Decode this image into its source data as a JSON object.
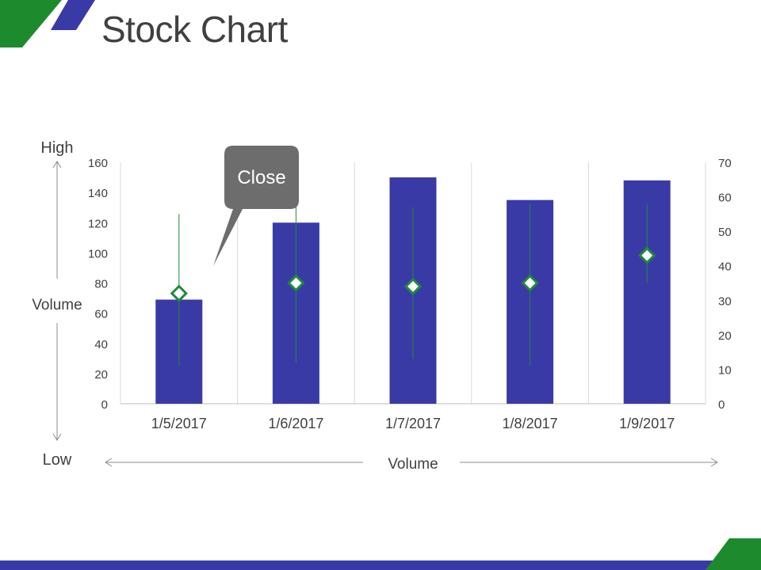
{
  "slide": {
    "title": "Stock Chart",
    "labels": {
      "high": "High",
      "low": "Low",
      "volume_left": "Volume",
      "volume_bottom": "Volume"
    },
    "callout": "Close"
  },
  "colors": {
    "bar": "#3a3aa6",
    "marker": "#1e8a3a",
    "accent_green": "#1e8a2e",
    "accent_blue": "#3a3aa6"
  },
  "chart_data": {
    "type": "bar",
    "categories": [
      "1/5/2017",
      "1/6/2017",
      "1/7/2017",
      "1/8/2017",
      "1/9/2017"
    ],
    "volume": [
      69,
      120,
      150,
      135,
      148
    ],
    "high": [
      55,
      58,
      57,
      58,
      58
    ],
    "low": [
      11,
      12,
      13,
      11,
      35
    ],
    "close": [
      32,
      35,
      34,
      35,
      43
    ],
    "y_left": {
      "min": 0,
      "max": 160,
      "ticks": [
        0,
        20,
        40,
        60,
        80,
        100,
        120,
        140,
        160
      ]
    },
    "y_right": {
      "min": 0,
      "max": 70,
      "ticks": [
        0,
        10,
        20,
        30,
        40,
        50,
        60,
        70
      ]
    },
    "grid": "vertical"
  }
}
